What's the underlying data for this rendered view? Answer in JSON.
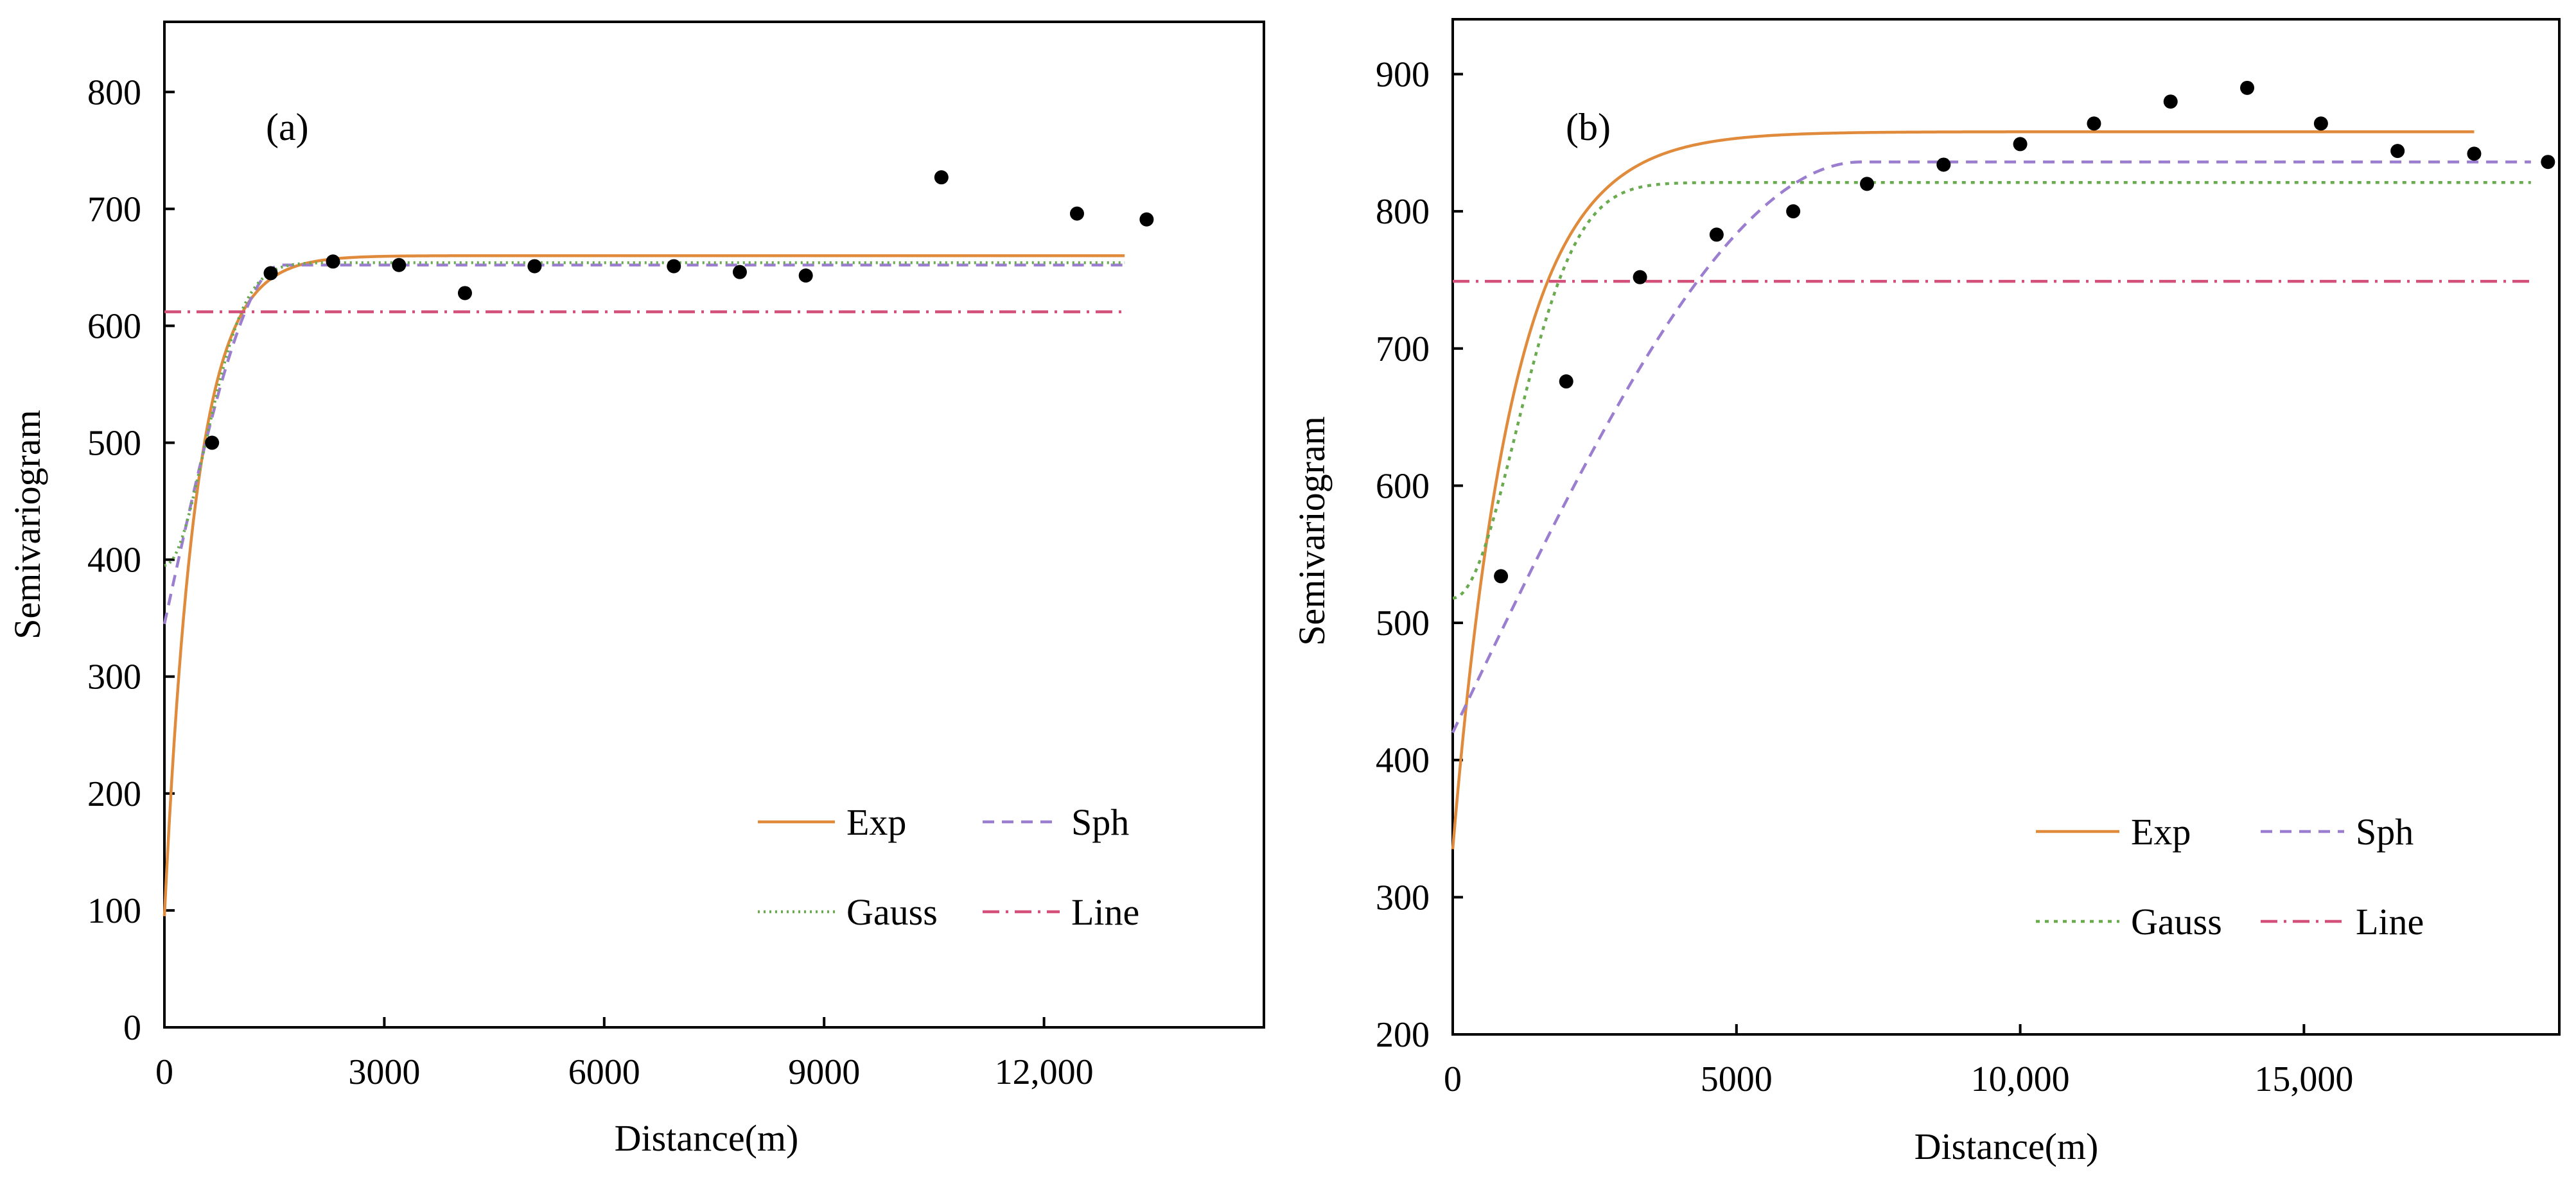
{
  "chart_data": [
    {
      "type": "scatter",
      "panel_label": "(a)",
      "xlabel": "Distance(m)",
      "ylabel": "Semivariogram",
      "xlim": [
        0,
        15000
      ],
      "ylim": [
        0,
        860
      ],
      "xticks": [
        0,
        3000,
        6000,
        9000,
        12000
      ],
      "xtick_labels": [
        "0",
        "3000",
        "6000",
        "9000",
        "12,000"
      ],
      "yticks": [
        0,
        100,
        200,
        300,
        400,
        500,
        600,
        700,
        800
      ],
      "ytick_labels": [
        "0",
        "100",
        "200",
        "300",
        "400",
        "500",
        "600",
        "700",
        "800"
      ],
      "observed": {
        "name": "Observed",
        "x": [
          650,
          1450,
          2300,
          3200,
          4100,
          5050,
          6950,
          7850,
          8750,
          10600,
          12450,
          13400
        ],
        "y": [
          500,
          645,
          655,
          652,
          628,
          651,
          651,
          646,
          643,
          727,
          696,
          691
        ]
      },
      "models": [
        {
          "name": "Exp",
          "kind": "exp",
          "nugget": 95,
          "sill": 660,
          "range": 1300,
          "xmax": 13100,
          "color": "#e08a3c",
          "dash": ""
        },
        {
          "name": "Sph",
          "kind": "sph",
          "nugget": 345,
          "sill": 652,
          "range": 1600,
          "xmax": 13100,
          "color": "#9b7ed0",
          "dash": "18,12"
        },
        {
          "name": "Gauss",
          "kind": "gauss",
          "nugget": 395,
          "sill": 654,
          "range": 1350,
          "xmax": 13100,
          "color": "#6aab4f",
          "dash": "3,6"
        },
        {
          "name": "Line",
          "kind": "line",
          "sill": 612,
          "xmax": 13100,
          "color": "#d2507a",
          "dash": "26,10,4,10"
        }
      ],
      "legend": [
        {
          "label": "Exp",
          "model": 0
        },
        {
          "label": "Sph",
          "model": 1
        },
        {
          "label": "Gauss",
          "model": 2
        },
        {
          "label": "Line",
          "model": 3
        }
      ]
    },
    {
      "type": "scatter",
      "panel_label": "(b)",
      "xlabel": "Distance(m)",
      "ylabel": "Semivariogram",
      "xlim": [
        0,
        19500
      ],
      "ylim": [
        200,
        940
      ],
      "xticks": [
        0,
        5000,
        10000,
        15000
      ],
      "xtick_labels": [
        "0",
        "5000",
        "10,000",
        "15,000"
      ],
      "yticks": [
        200,
        300,
        400,
        500,
        600,
        700,
        800,
        900
      ],
      "ytick_labels": [
        "200",
        "300",
        "400",
        "500",
        "600",
        "700",
        "800",
        "900"
      ],
      "observed": {
        "name": "Observed",
        "x": [
          850,
          2000,
          3300,
          4650,
          6000,
          7300,
          8650,
          10000,
          11300,
          12650,
          14000,
          15300,
          16650,
          18000,
          19300
        ],
        "y": [
          534,
          676,
          752,
          783,
          800,
          820,
          834,
          849,
          864,
          880,
          890,
          864,
          844,
          842,
          836
        ]
      },
      "models": [
        {
          "name": "Exp",
          "kind": "exp",
          "nugget": 335,
          "sill": 858,
          "range": 3200,
          "xmax": 18000,
          "color": "#e08a3c",
          "dash": ""
        },
        {
          "name": "Sph",
          "kind": "sph",
          "nugget": 420,
          "sill": 836,
          "range": 7200,
          "xmax": 19000,
          "color": "#9b7ed0",
          "dash": "18,12"
        },
        {
          "name": "Gauss",
          "kind": "gauss",
          "nugget": 518,
          "sill": 821,
          "range": 2700,
          "xmax": 19000,
          "color": "#6aab4f",
          "dash": "6,8"
        },
        {
          "name": "Line",
          "kind": "line",
          "sill": 749,
          "xmax": 19000,
          "color": "#d2507a",
          "dash": "26,10,4,10"
        }
      ],
      "legend": [
        {
          "label": "Exp",
          "model": 0
        },
        {
          "label": "Sph",
          "model": 1
        },
        {
          "label": "Gauss",
          "model": 2
        },
        {
          "label": "Line",
          "model": 3
        }
      ]
    }
  ]
}
